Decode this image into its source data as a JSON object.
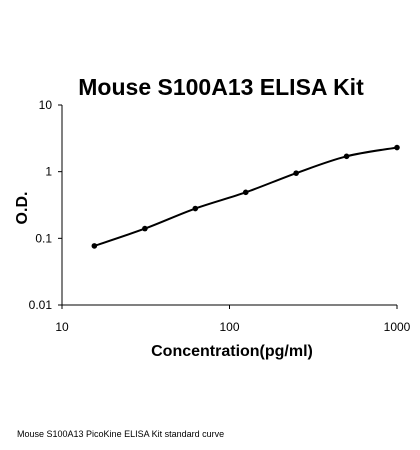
{
  "caption": "Mouse S100A13 PicoKine ELISA Kit standard curve",
  "chart_data": {
    "type": "scatter",
    "title": "Mouse S100A13 ELISA Kit",
    "xlabel": "Concentration(pg/ml)",
    "ylabel": "O.D.",
    "x_scale": "log",
    "y_scale": "log",
    "xlim": [
      10,
      1000
    ],
    "ylim": [
      0.01,
      10
    ],
    "x_ticks": [
      "10",
      "100",
      "1000"
    ],
    "y_ticks": [
      "10",
      "1",
      "0.1",
      "0.01"
    ],
    "grid": false,
    "legend": "none",
    "series": [
      {
        "points": [
          {
            "x": 15.6,
            "y": 0.077
          },
          {
            "x": 31.25,
            "y": 0.14
          },
          {
            "x": 62.5,
            "y": 0.28
          },
          {
            "x": 125,
            "y": 0.49
          },
          {
            "x": 250,
            "y": 0.95
          },
          {
            "x": 500,
            "y": 1.7
          },
          {
            "x": 1000,
            "y": 2.3
          }
        ],
        "fit_curve": true,
        "color": "#000000"
      }
    ]
  }
}
